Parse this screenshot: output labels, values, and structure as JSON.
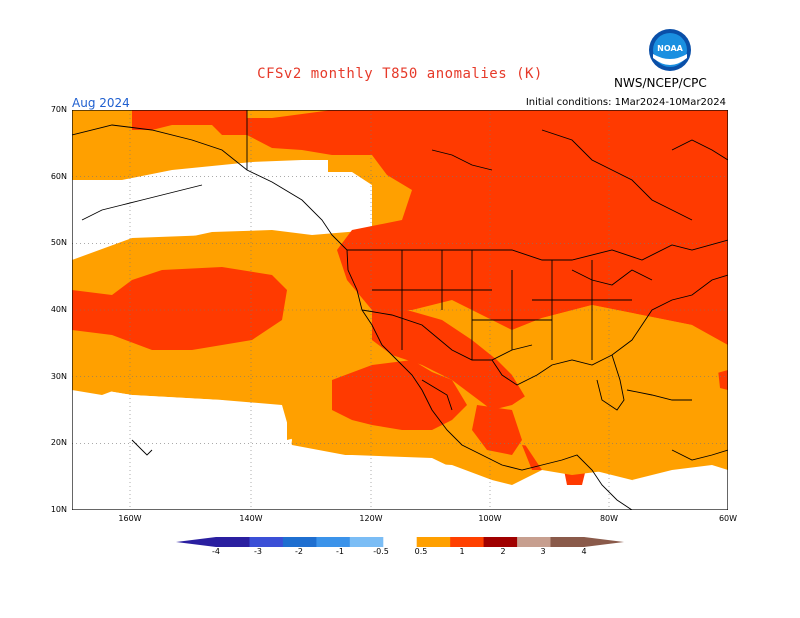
{
  "title": "CFSv2  monthly  T850  anomalies  (K)",
  "agency": "NWS/NCEP/CPC",
  "logo_text": "NOAA",
  "month": "Aug 2024",
  "initial_conditions": "Initial conditions:  1Mar2024-10Mar2024",
  "lat_labels": [
    "70N",
    "60N",
    "50N",
    "40N",
    "30N",
    "20N",
    "10N"
  ],
  "lon_labels": [
    "160W",
    "140W",
    "120W",
    "100W",
    "80W",
    "60W"
  ],
  "legend": {
    "ticks": [
      "-4",
      "-3",
      "-2",
      "-1",
      "-0.5",
      "0.5",
      "1",
      "2",
      "3",
      "4"
    ],
    "colors": [
      "#2a1fa0",
      "#3b4fd6",
      "#1f6fd0",
      "#3b93ea",
      "#7bbdf5",
      "#ffffff",
      "#ffa000",
      "#ff4000",
      "#a00000",
      "#c79f8f",
      "#8a5a4a"
    ]
  },
  "anomaly_colors": {
    "0.5-1": "#ffa000",
    "1-2": "#ff3a00"
  }
}
